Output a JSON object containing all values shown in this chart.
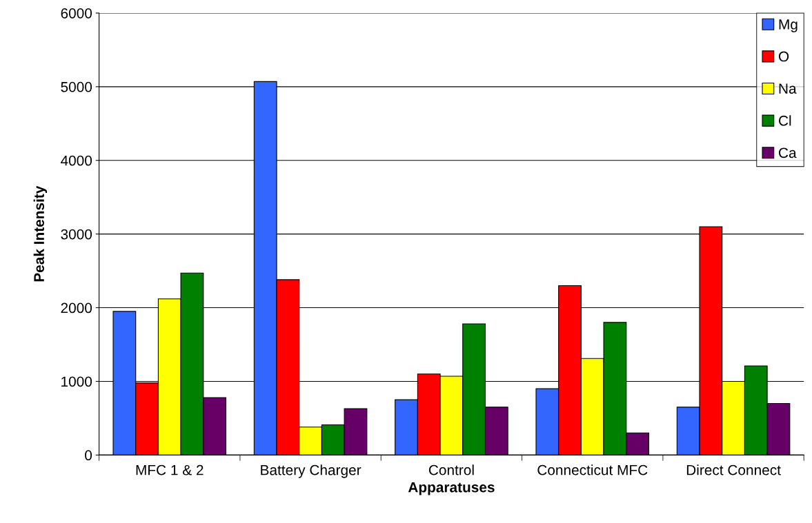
{
  "chart_data": {
    "type": "bar",
    "xlabel": "Apparatuses",
    "ylabel": "Peak Intensity",
    "categories": [
      "MFC 1 & 2",
      "Battery Charger",
      "Control",
      "Connecticut MFC",
      "Direct Connect"
    ],
    "series": [
      {
        "name": "Mg",
        "color": "#3366ff",
        "values": [
          1950,
          5070,
          750,
          900,
          650
        ]
      },
      {
        "name": "O",
        "color": "#ff0000",
        "values": [
          980,
          2380,
          1100,
          2300,
          3100
        ]
      },
      {
        "name": "Na",
        "color": "#ffff00",
        "values": [
          2120,
          380,
          1070,
          1310,
          1000
        ]
      },
      {
        "name": "Cl",
        "color": "#008000",
        "values": [
          2470,
          410,
          1780,
          1800,
          1210
        ]
      },
      {
        "name": "Ca",
        "color": "#660066",
        "values": [
          780,
          630,
          650,
          300,
          700
        ]
      }
    ],
    "ylim": [
      0,
      6000
    ],
    "yticks": [
      0,
      1000,
      2000,
      3000,
      4000,
      5000,
      6000
    ],
    "grid": "y",
    "legend": "top right"
  }
}
